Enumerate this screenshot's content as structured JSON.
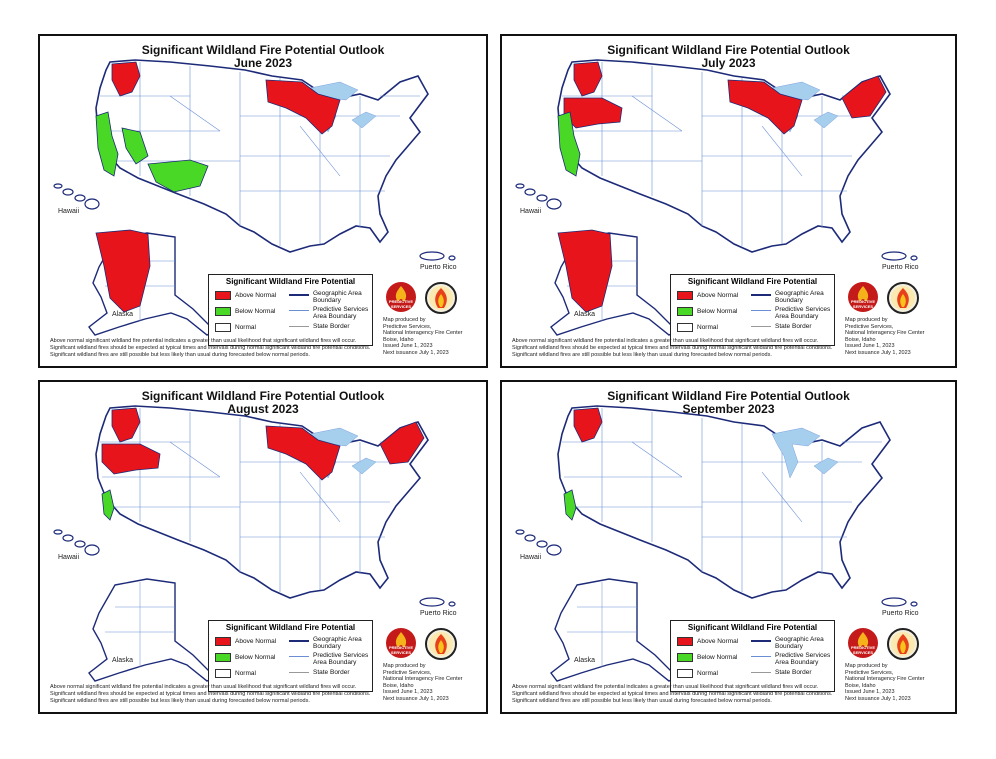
{
  "panels": [
    {
      "title": "Significant Wildland Fire Potential Outlook",
      "subtitle": "June 2023",
      "above": [
        "nw",
        "ak",
        "mw"
      ],
      "below": [
        "ca",
        "ca2",
        "gb"
      ]
    },
    {
      "title": "Significant Wildland Fire Potential Outlook",
      "subtitle": "July 2023",
      "above": [
        "nw",
        "nw2",
        "ak",
        "mw",
        "ne"
      ],
      "below": [
        "ca"
      ]
    },
    {
      "title": "Significant Wildland Fire Potential Outlook",
      "subtitle": "August 2023",
      "above": [
        "nw",
        "nw2",
        "mw",
        "ne"
      ],
      "below": [
        "ca3"
      ]
    },
    {
      "title": "Significant Wildland Fire Potential Outlook",
      "subtitle": "September 2023",
      "above": [
        "nw"
      ],
      "below": [
        "ca3"
      ]
    }
  ],
  "legend": {
    "title": "Significant Wildland Fire Potential",
    "above": "Above Normal",
    "below": "Below Normal",
    "normal": "Normal",
    "geo": "Geographic Area Boundary",
    "ps": "Predictive Services Area Boundary",
    "state": "State Border"
  },
  "labels": {
    "hawaii": "Hawaii",
    "alaska": "Alaska",
    "pr": "Puerto Rico"
  },
  "footer": {
    "l1": "Above normal significant wildland fire potential indicates a greater than usual likelihood that significant wildland fires will occur.",
    "l2": "Significant wildland fires should be expected at typical times and intervals during normal significant wildland fire potential conditions.",
    "l3": "Significant wildland fires are still possible but less likely than usual during forecasted below normal periods."
  },
  "credits": {
    "c1": "Map produced by",
    "c2": "Predictive Services,",
    "c3": "National Interagency Fire Center",
    "c4": "Boise, Idaho",
    "c5": "Issued June 1, 2023",
    "c6": "Next issuance July 1, 2023"
  },
  "logo": {
    "ps": "PREDICTIVE SERVICES"
  },
  "colors": {
    "above": "#e8141b",
    "below": "#49d826",
    "normal": "#ffffff",
    "water": "#a6cfee",
    "boundary": "#1c2a78",
    "psa": "#6b8fd6"
  }
}
